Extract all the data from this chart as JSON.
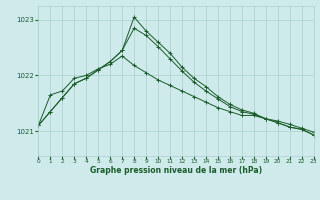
{
  "title": "Graphe pression niveau de la mer (hPa)",
  "background_color": "#ceeaea",
  "grid_color": "#aacfcf",
  "line_color": "#1a5c2a",
  "x_ticks": [
    0,
    1,
    2,
    3,
    4,
    5,
    6,
    7,
    8,
    9,
    10,
    11,
    12,
    13,
    14,
    15,
    16,
    17,
    18,
    19,
    20,
    21,
    22,
    23
  ],
  "y_ticks": [
    1021,
    1022,
    1023
  ],
  "xlim": [
    0,
    23
  ],
  "ylim": [
    1020.55,
    1023.25
  ],
  "series1": [
    1021.1,
    1021.35,
    1021.6,
    1021.85,
    1021.95,
    1022.1,
    1022.25,
    1022.45,
    1023.05,
    1022.8,
    1022.6,
    1022.4,
    1022.15,
    1021.95,
    1021.8,
    1021.62,
    1021.48,
    1021.38,
    1021.32,
    1021.22,
    1021.15,
    1021.07,
    1021.03,
    1020.93
  ],
  "series2": [
    1021.1,
    1021.35,
    1021.6,
    1021.85,
    1021.95,
    1022.1,
    1022.25,
    1022.45,
    1022.85,
    1022.72,
    1022.52,
    1022.3,
    1022.08,
    1021.88,
    1021.72,
    1021.58,
    1021.44,
    1021.35,
    1021.3,
    1021.22,
    1021.15,
    1021.07,
    1021.03,
    1020.93
  ],
  "series3": [
    1021.1,
    1021.65,
    1021.72,
    1021.95,
    1022.0,
    1022.12,
    1022.2,
    1022.35,
    1022.18,
    1022.05,
    1021.92,
    1021.82,
    1021.72,
    1021.62,
    1021.52,
    1021.42,
    1021.35,
    1021.28,
    1021.28,
    1021.22,
    1021.18,
    1021.12,
    1021.05,
    1020.98
  ]
}
